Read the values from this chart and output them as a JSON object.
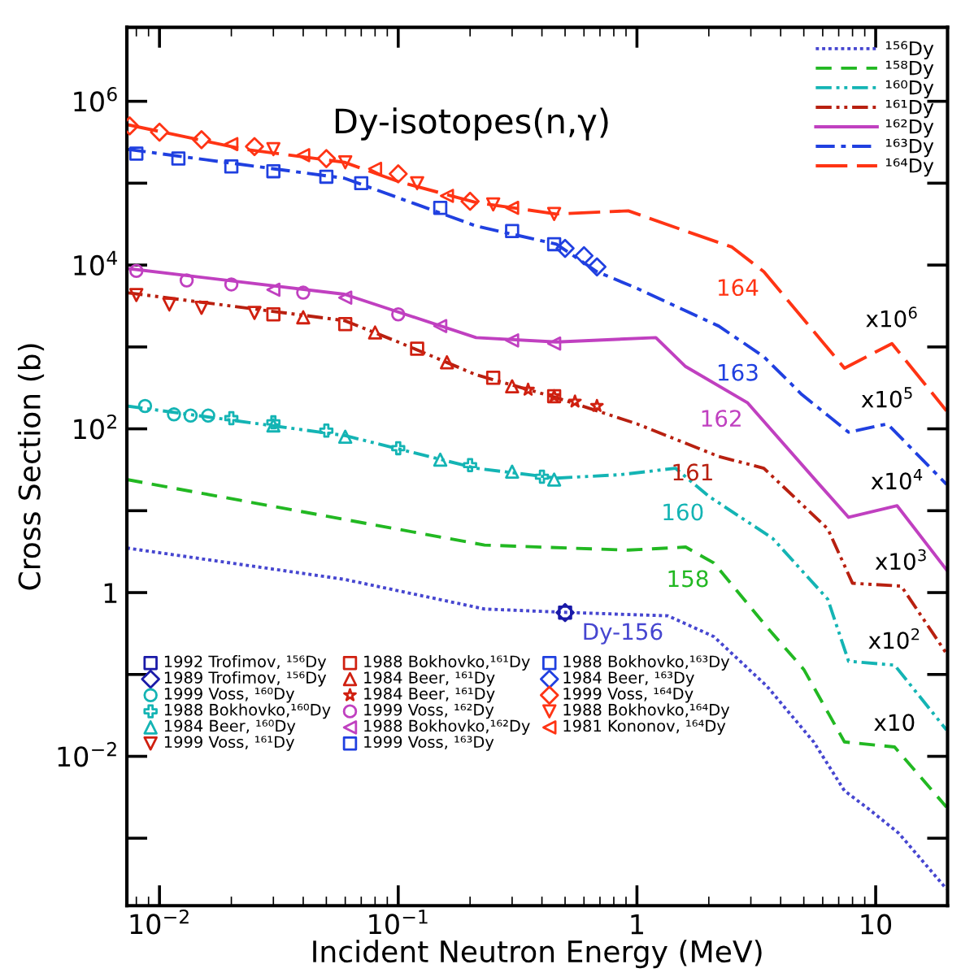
{
  "chart_data": {
    "type": "line",
    "title": "Dy-isotopes(n,γ)",
    "xlabel": "Incident Neutron Energy (MeV)",
    "ylabel": "Cross Section (b)",
    "log": "xy",
    "grid": false,
    "legend": [
      "top right",
      "bottom left"
    ],
    "xlim": [
      0.0073,
      20
    ],
    "ylim": [
      0.00015,
      8000000
    ],
    "xticks": [
      {
        "value": 0.01,
        "label": "10$^{−2}$"
      },
      {
        "value": 0.1,
        "label": "10$^{−1}$"
      },
      1,
      10
    ],
    "yticks": [
      {
        "value": 0.001,
        "label": null
      },
      {
        "value": 0.01,
        "label": "10$^{−2}$"
      },
      {
        "value": 0.1,
        "label": null
      },
      1,
      {
        "value": 10,
        "label": null
      },
      {
        "value": 100,
        "label": "10$^{2}$"
      },
      {
        "value": 1000,
        "label": null
      },
      {
        "value": 10000,
        "label": "10$^{4}$"
      },
      {
        "value": 100000,
        "label": null
      },
      {
        "value": 1000000,
        "label": "10$^{6}$"
      }
    ],
    "series": [
      {
        "name": "¹⁵⁶Dy",
        "color": "#4646d0",
        "line_style": "dotted",
        "x": [
          0.0073,
          0.0595,
          0.23,
          0.53,
          1.35,
          2.1,
          3.5,
          5.5,
          7.4,
          9.3,
          12.5,
          19.8
        ],
        "values": [
          3.5,
          1.45,
          0.63,
          0.57,
          0.52,
          0.29,
          0.072,
          0.015,
          0.0038,
          0.0023,
          0.00115,
          0.00024
        ]
      },
      {
        "name": "¹⁵⁸Dy",
        "color": "#22b822",
        "line_style": "dashed",
        "x": [
          0.0073,
          0.23,
          0.92,
          1.6,
          2.1,
          3.5,
          5.0,
          7.4,
          12.0,
          19.8
        ],
        "values": [
          24,
          3.8,
          3.3,
          3.6,
          2.3,
          0.38,
          0.115,
          0.015,
          0.013,
          0.0024
        ]
      },
      {
        "name": "¹⁶⁰Dy",
        "color": "#14b4b4",
        "line_style": "dashdotdot",
        "x": [
          0.0073,
          0.0595,
          0.212,
          0.46,
          0.85,
          1.45,
          2.0,
          3.7,
          6.3,
          7.7,
          12.0,
          19.8
        ],
        "values": [
          190,
          83,
          33,
          25,
          27.5,
          33,
          15,
          4.6,
          0.83,
          0.145,
          0.13,
          0.021
        ]
      },
      {
        "name": "¹⁶¹Dy",
        "color": "#b82010",
        "line_style": "dashdotdot",
        "x": [
          0.0073,
          0.0595,
          0.1,
          0.212,
          0.46,
          1.0,
          2.2,
          3.4,
          6.3,
          8.0,
          12.8,
          19.8
        ],
        "values": [
          4600,
          2100,
          1150,
          457,
          240,
          115,
          46,
          33,
          6,
          1.3,
          1.2,
          0.18
        ]
      },
      {
        "name": "¹⁶²Dy",
        "color": "#c040c0",
        "line_style": "solid",
        "x": [
          0.0073,
          0.0595,
          0.212,
          0.46,
          1.2,
          1.6,
          2.9,
          5.8,
          7.7,
          12.3,
          19.8
        ],
        "values": [
          9100,
          4400,
          1300,
          1150,
          1300,
          575,
          209,
          21,
          8.3,
          11.5,
          1.9
        ]
      },
      {
        "name": "¹⁶³Dy",
        "color": "#2040e0",
        "line_style": "dashdot",
        "x": [
          0.0073,
          0.0595,
          0.212,
          0.46,
          0.68,
          1.0,
          2.2,
          3.4,
          4.9,
          7.7,
          11.2,
          19.8
        ],
        "values": [
          260000,
          115000,
          30000,
          18000,
          8300,
          5200,
          1800,
          760,
          263,
          91,
          115,
          21
        ]
      },
      {
        "name": "¹⁶⁴Dy",
        "color": "#ff3414",
        "line_style": "longdash",
        "x": [
          0.0073,
          0.0226,
          0.0595,
          0.1,
          0.212,
          0.46,
          0.92,
          1.6,
          2.5,
          3.4,
          7.4,
          11.7,
          19.8
        ],
        "values": [
          520000,
          260000,
          180000,
          105000,
          58000,
          42000,
          46000,
          26000,
          16600,
          8300,
          550,
          1100,
          166
        ]
      },
      {
        "name": "1992 Trofimov, ¹⁵⁶Dy",
        "type": "scatter",
        "marker": "square",
        "color": "#1a1aa8",
        "x": [
          0.5
        ],
        "values": [
          0.57
        ]
      },
      {
        "name": "1989 Trofimov, ¹⁵⁶Dy",
        "type": "scatter",
        "marker": "diamond",
        "color": "#1a1aa8",
        "x": [
          0.5
        ],
        "values": [
          0.57
        ]
      },
      {
        "name": "1999 Voss, ¹⁶⁰Dy",
        "type": "scatter",
        "marker": "circle",
        "color": "#14b4b4",
        "x": [
          0.0087,
          0.0115,
          0.0135,
          0.016
        ],
        "values": [
          190,
          150,
          145,
          145
        ]
      },
      {
        "name": "1988 Bokhovko,¹⁶⁰Dy",
        "type": "scatter",
        "marker": "cross",
        "color": "#14b4b4",
        "x": [
          0.02,
          0.03,
          0.05,
          0.1,
          0.2,
          0.4
        ],
        "values": [
          135,
          120,
          95,
          58,
          36,
          26
        ]
      },
      {
        "name": "1984 Beer, ¹⁶⁰Dy",
        "type": "scatter",
        "marker": "triangle",
        "color": "#14b4b4",
        "x": [
          0.03,
          0.06,
          0.15,
          0.3,
          0.45
        ],
        "values": [
          110,
          80,
          42,
          30,
          24
        ]
      },
      {
        "name": "1999 Voss, ¹⁶¹Dy",
        "type": "scatter",
        "marker": "triangle_down",
        "color": "#d02010",
        "x": [
          0.008,
          0.011,
          0.015,
          0.025
        ],
        "values": [
          4300,
          3300,
          3000,
          2600
        ]
      },
      {
        "name": "1988 Bokhovko,¹⁶¹Dy",
        "type": "scatter",
        "marker": "square",
        "color": "#d02010",
        "x": [
          0.03,
          0.06,
          0.12,
          0.25,
          0.45
        ],
        "values": [
          2500,
          1900,
          950,
          420,
          250
        ]
      },
      {
        "name": "1984 Beer, ¹⁶¹Dy",
        "type": "scatter",
        "marker": "triangle",
        "color": "#d02010",
        "x": [
          0.04,
          0.08,
          0.16,
          0.3
        ],
        "values": [
          2300,
          1500,
          650,
          330
        ]
      },
      {
        "name": "1984 Beer, ¹⁶¹Dy",
        "type": "scatter",
        "marker": "star",
        "color": "#d02010",
        "x": [
          0.35,
          0.45,
          0.55,
          0.68
        ],
        "values": [
          300,
          250,
          215,
          190
        ]
      },
      {
        "name": "1999 Voss, ¹⁶²Dy",
        "type": "scatter",
        "marker": "circle",
        "color": "#c040c0",
        "x": [
          0.008,
          0.013,
          0.02,
          0.04,
          0.1
        ],
        "values": [
          8500,
          6500,
          5800,
          4600,
          2500
        ]
      },
      {
        "name": "1988 Bokhovko,¹⁶²Dy",
        "type": "scatter",
        "marker": "triangle_left",
        "color": "#c040c0",
        "x": [
          0.03,
          0.06,
          0.15,
          0.3,
          0.45
        ],
        "values": [
          5000,
          4000,
          1800,
          1200,
          1100
        ]
      },
      {
        "name": "1999 Voss, ¹⁶³Dy",
        "type": "scatter",
        "marker": "square",
        "color": "#2040e0",
        "x": [
          0.008,
          0.012,
          0.02,
          0.05
        ],
        "values": [
          230000,
          200000,
          160000,
          120000
        ]
      },
      {
        "name": "1988 Bokhovko,¹⁶³Dy",
        "type": "scatter",
        "marker": "square",
        "color": "#2040e0",
        "x": [
          0.03,
          0.07,
          0.15,
          0.3,
          0.45
        ],
        "values": [
          140000,
          100000,
          50000,
          26000,
          18000
        ]
      },
      {
        "name": "1984 Beer, ¹⁶³Dy",
        "type": "scatter",
        "marker": "diamond",
        "color": "#2040e0",
        "x": [
          0.5,
          0.6,
          0.68
        ],
        "values": [
          16000,
          13000,
          9500
        ]
      },
      {
        "name": "1999 Voss, ¹⁶⁴Dy",
        "type": "scatter",
        "marker": "diamond",
        "color": "#ff3414",
        "x": [
          0.0075,
          0.01,
          0.015,
          0.025,
          0.05,
          0.1,
          0.2
        ],
        "values": [
          500000,
          420000,
          340000,
          280000,
          200000,
          130000,
          60000
        ]
      },
      {
        "name": "1988 Bokhovko,¹⁶⁴Dy",
        "type": "scatter",
        "marker": "triangle_down",
        "color": "#ff3414",
        "x": [
          0.03,
          0.06,
          0.12,
          0.25,
          0.45
        ],
        "values": [
          260000,
          180000,
          100000,
          55000,
          42000
        ]
      },
      {
        "name": "1981 Kononov, ¹⁶⁴Dy",
        "type": "scatter",
        "marker": "triangle_left",
        "color": "#ff3414",
        "x": [
          0.02,
          0.04,
          0.08,
          0.16,
          0.3
        ],
        "values": [
          300000,
          220000,
          150000,
          70000,
          50000
        ]
      }
    ],
    "annotations": [
      {
        "text": "164",
        "x": 3.4,
        "y": 8300
      },
      {
        "text": "163",
        "x": 3.4,
        "y": 760
      },
      {
        "text": "162",
        "x": 2.9,
        "y": 209
      },
      {
        "text": "161",
        "x": 2.2,
        "y": 46
      },
      {
        "text": "160",
        "x": 2.0,
        "y": 15
      },
      {
        "text": "158",
        "x": 2.1,
        "y": 2.3
      },
      {
        "text": "Dy-156",
        "x": 1.35,
        "y": 0.52
      },
      {
        "text": "x10$^{6}$",
        "x": 11.7,
        "y": 1100
      },
      {
        "text": "x10$^{5}$",
        "x": 11.2,
        "y": 115
      },
      {
        "text": "x10$^{4}$",
        "x": 12.3,
        "y": 11.5
      },
      {
        "text": "x10$^{3}$",
        "x": 12.8,
        "y": 1.2
      },
      {
        "text": "x10$^{2}$",
        "x": 12.0,
        "y": 0.13
      },
      {
        "text": "x10",
        "x": 12.0,
        "y": 0.013
      }
    ]
  }
}
